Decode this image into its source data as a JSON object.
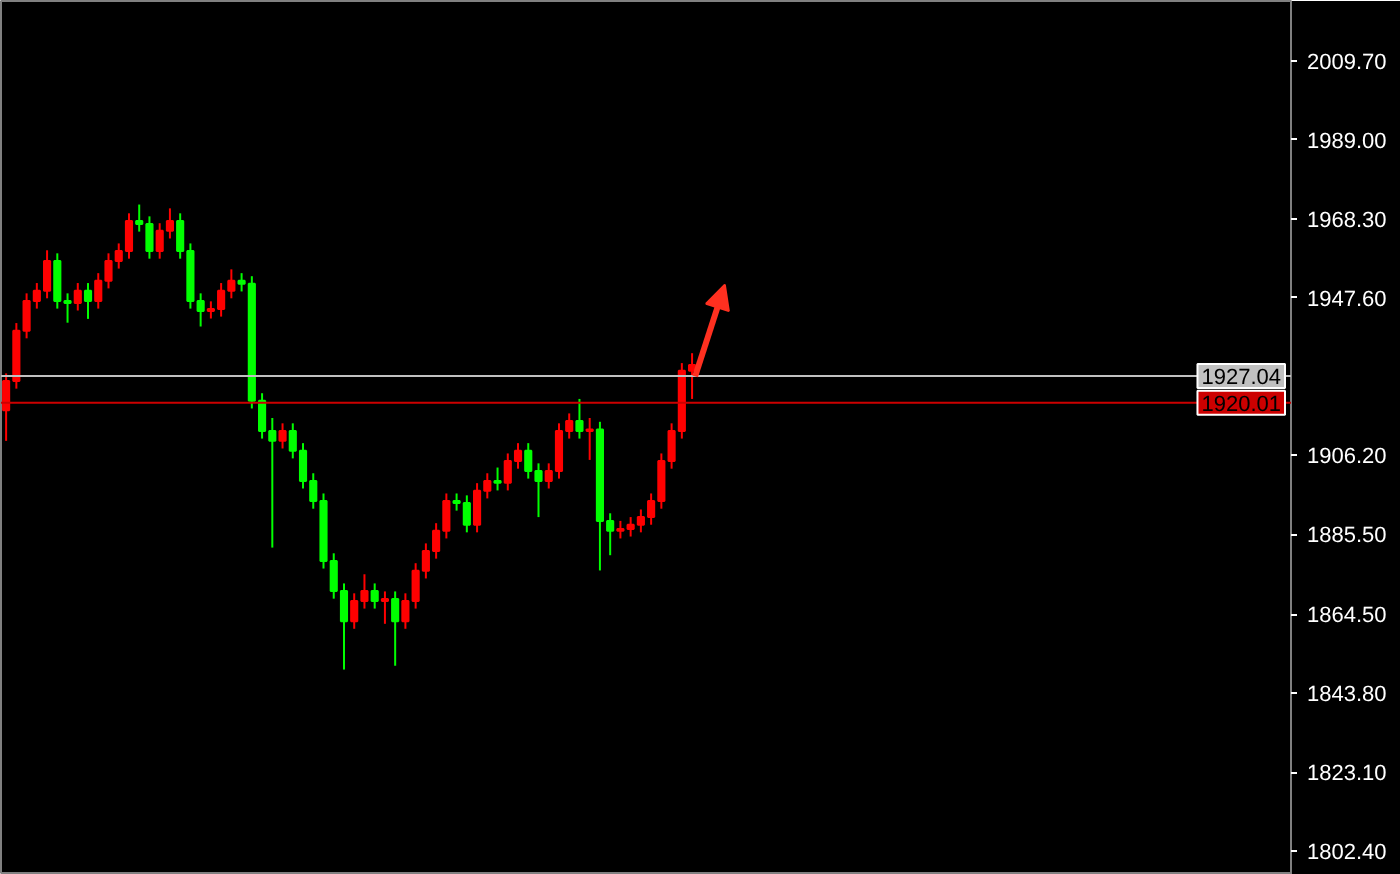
{
  "chart_data": {
    "type": "candlestick",
    "categories": [
      null,
      null,
      null,
      null,
      null,
      null,
      null,
      null,
      null,
      null,
      null,
      null,
      null,
      null,
      null,
      null,
      null,
      null,
      null,
      null,
      null,
      null,
      null,
      null,
      null,
      null,
      null,
      null,
      null,
      null,
      null,
      null,
      null,
      null,
      null,
      null,
      null,
      null,
      null,
      null,
      null,
      null,
      null,
      null,
      null,
      null,
      null,
      null,
      null,
      null,
      null,
      null,
      null,
      null,
      null,
      null,
      null,
      null,
      null,
      null,
      null,
      null,
      null,
      null,
      null,
      null,
      null,
      null,
      null,
      null,
      null,
      null,
      null,
      null,
      null,
      null,
      null,
      null,
      null,
      null,
      null,
      null,
      null,
      null,
      null,
      null,
      null,
      null,
      null,
      null,
      null,
      null,
      null,
      null,
      null,
      null,
      null,
      null,
      null,
      null,
      null,
      null,
      null,
      null,
      null,
      null,
      null,
      null,
      null,
      null,
      null,
      null,
      null,
      null,
      null,
      null,
      null,
      null,
      null,
      null,
      null,
      null,
      null,
      null,
      null,
      null
    ],
    "ohlc": [
      [
        1918.0,
        1927.7,
        1910.0,
        1925.7
      ],
      [
        1925.7,
        1940.9,
        1923.7,
        1938.9
      ],
      [
        1938.9,
        1948.7,
        1936.9,
        1946.7
      ],
      [
        1946.7,
        1951.4,
        1944.7,
        1949.4
      ],
      [
        1949.4,
        1960.0,
        1947.4,
        1957.2
      ],
      [
        1957.2,
        1959.2,
        1944.7,
        1946.7
      ],
      [
        1946.7,
        1948.7,
        1941.0,
        1946.2
      ],
      [
        1946.2,
        1951.4,
        1944.2,
        1949.4
      ],
      [
        1949.4,
        1951.4,
        1942.0,
        1946.7
      ],
      [
        1946.7,
        1954.0,
        1944.7,
        1952.0
      ],
      [
        1952.0,
        1959.2,
        1950.0,
        1957.2
      ],
      [
        1957.2,
        1961.8,
        1955.2,
        1959.8
      ],
      [
        1959.8,
        1969.7,
        1957.8,
        1967.7
      ],
      [
        1967.7,
        1972.0,
        1964.9,
        1966.9
      ],
      [
        1966.9,
        1968.9,
        1957.8,
        1959.8
      ],
      [
        1959.8,
        1967.1,
        1957.8,
        1965.1
      ],
      [
        1965.1,
        1971.0,
        1963.1,
        1967.7
      ],
      [
        1967.7,
        1969.7,
        1957.8,
        1959.8
      ],
      [
        1959.8,
        1961.8,
        1944.7,
        1946.7
      ],
      [
        1946.7,
        1948.7,
        1940.0,
        1944.1
      ],
      [
        1944.1,
        1946.6,
        1942.1,
        1944.6
      ],
      [
        1944.6,
        1951.4,
        1942.6,
        1949.4
      ],
      [
        1949.4,
        1955.0,
        1947.4,
        1952.0
      ],
      [
        1952.0,
        1954.0,
        1949.2,
        1951.2
      ],
      [
        1951.2,
        1953.2,
        1918.5,
        1920.5
      ],
      [
        1920.5,
        1922.5,
        1910.6,
        1912.6
      ],
      [
        1912.6,
        1916.0,
        1882.0,
        1910.0
      ],
      [
        1910.0,
        1914.6,
        1908.0,
        1912.6
      ],
      [
        1912.6,
        1914.6,
        1905.4,
        1907.4
      ],
      [
        1907.4,
        1909.4,
        1897.5,
        1899.5
      ],
      [
        1899.5,
        1901.5,
        1892.2,
        1894.2
      ],
      [
        1894.2,
        1896.2,
        1876.5,
        1878.5
      ],
      [
        1878.5,
        1880.5,
        1868.6,
        1870.6
      ],
      [
        1870.6,
        1872.6,
        1850.0,
        1862.7
      ],
      [
        1862.7,
        1870.0,
        1860.7,
        1868.0
      ],
      [
        1868.0,
        1875.0,
        1866.0,
        1870.6
      ],
      [
        1870.6,
        1872.6,
        1866.0,
        1868.0
      ],
      [
        1868.0,
        1870.5,
        1862.0,
        1868.5
      ],
      [
        1868.5,
        1870.5,
        1851.0,
        1862.7
      ],
      [
        1862.7,
        1870.0,
        1860.7,
        1868.0
      ],
      [
        1868.0,
        1877.9,
        1866.0,
        1875.9
      ],
      [
        1875.9,
        1883.1,
        1873.9,
        1881.1
      ],
      [
        1881.1,
        1888.4,
        1879.1,
        1886.4
      ],
      [
        1886.4,
        1896.2,
        1884.4,
        1894.2
      ],
      [
        1894.2,
        1896.2,
        1891.7,
        1893.7
      ],
      [
        1893.7,
        1895.7,
        1886.0,
        1888.0
      ],
      [
        1888.0,
        1898.9,
        1886.0,
        1896.9
      ],
      [
        1896.9,
        1901.5,
        1894.9,
        1899.5
      ],
      [
        1899.5,
        1903.0,
        1897.0,
        1899.0
      ],
      [
        1899.0,
        1906.7,
        1897.0,
        1904.7
      ],
      [
        1904.7,
        1909.4,
        1902.7,
        1907.4
      ],
      [
        1907.4,
        1909.4,
        1900.1,
        1902.1
      ],
      [
        1902.1,
        1904.1,
        1890.0,
        1899.5
      ],
      [
        1899.5,
        1904.1,
        1897.5,
        1902.1
      ],
      [
        1902.1,
        1914.6,
        1900.1,
        1912.6
      ],
      [
        1912.6,
        1917.2,
        1910.6,
        1915.2
      ],
      [
        1915.2,
        1921.0,
        1910.6,
        1912.6
      ],
      [
        1912.6,
        1916.0,
        1905.0,
        1913.0
      ],
      [
        1913.0,
        1915.0,
        1876.0,
        1889.0
      ],
      [
        1889.0,
        1891.0,
        1880.0,
        1886.4
      ],
      [
        1886.4,
        1889.0,
        1884.4,
        1886.9
      ],
      [
        1886.9,
        1890.0,
        1884.9,
        1888.0
      ],
      [
        1888.0,
        1892.0,
        1886.0,
        1890.0
      ],
      [
        1890.0,
        1896.2,
        1888.0,
        1894.2
      ],
      [
        1894.2,
        1906.7,
        1892.2,
        1904.7
      ],
      [
        1904.7,
        1914.6,
        1902.7,
        1912.6
      ],
      [
        1912.6,
        1930.4,
        1910.6,
        1928.4
      ],
      [
        1928.4,
        1933.0,
        1921.0,
        1929.9
      ],
      null,
      null,
      null,
      null,
      null,
      null,
      null,
      null,
      null,
      null,
      null,
      null,
      null,
      null,
      null,
      null,
      null,
      null,
      null,
      null,
      null,
      null,
      null,
      null,
      null,
      null,
      null,
      null,
      null,
      null,
      null,
      null,
      null,
      null,
      null,
      null,
      null,
      null,
      null,
      null,
      null,
      null,
      null,
      null,
      null,
      null,
      null,
      null,
      null,
      null,
      null,
      null,
      null,
      null,
      null,
      null,
      null,
      null
    ],
    "colors": [
      "#ff0000",
      "#ff0000",
      "#ff0000",
      "#ff0000",
      "#ff0000",
      "#00ff00",
      "#00ff00",
      "#ff0000",
      "#00ff00",
      "#ff0000",
      "#ff0000",
      "#ff0000",
      "#ff0000",
      "#00ff00",
      "#00ff00",
      "#ff0000",
      "#ff0000",
      "#00ff00",
      "#00ff00",
      "#00ff00",
      "#ff0000",
      "#ff0000",
      "#ff0000",
      "#00ff00",
      "#00ff00",
      "#00ff00",
      "#00ff00",
      "#ff0000",
      "#00ff00",
      "#00ff00",
      "#00ff00",
      "#00ff00",
      "#00ff00",
      "#00ff00",
      "#ff0000",
      "#ff0000",
      "#00ff00",
      "#ff0000",
      "#00ff00",
      "#ff0000",
      "#ff0000",
      "#ff0000",
      "#ff0000",
      "#ff0000",
      "#00ff00",
      "#00ff00",
      "#ff0000",
      "#ff0000",
      "#00ff00",
      "#ff0000",
      "#ff0000",
      "#00ff00",
      "#00ff00",
      "#ff0000",
      "#ff0000",
      "#ff0000",
      "#00ff00",
      "#ff0000",
      "#00ff00",
      "#00ff00",
      "#ff0000",
      "#ff0000",
      "#ff0000",
      "#ff0000",
      "#ff0000",
      "#ff0000",
      "#ff0000",
      "#ff0000",
      null,
      null,
      null,
      null,
      null,
      null,
      null,
      null,
      null,
      null,
      null,
      null,
      null,
      null,
      null,
      null,
      null,
      null,
      null,
      null,
      null,
      null,
      null,
      null,
      null,
      null,
      null,
      null,
      null,
      null,
      null,
      null,
      null,
      null,
      null,
      null,
      null,
      null,
      null,
      null,
      null,
      null,
      null,
      null,
      null,
      null,
      null,
      null,
      null,
      null,
      null,
      null,
      null,
      null,
      null,
      null,
      null,
      null
    ],
    "ylim": [
      1796.1,
      2025.4
    ],
    "yticks": [
      {
        "value": 2009.7,
        "label": "2009.70"
      },
      {
        "value": 1989.0,
        "label": "1989.00"
      },
      {
        "value": 1968.3,
        "label": "1968.30"
      },
      {
        "value": 1947.6,
        "label": "1947.60"
      },
      {
        "value": 1906.2,
        "label": "1906.20"
      },
      {
        "value": 1885.5,
        "label": "1885.50"
      },
      {
        "value": 1864.5,
        "label": "1864.50"
      },
      {
        "value": 1843.8,
        "label": "1843.80"
      },
      {
        "value": 1823.1,
        "label": "1823.10"
      },
      {
        "value": 1802.4,
        "label": "1802.40"
      }
    ],
    "ref_lines": [
      {
        "axis": "y",
        "value": 1927.04,
        "label": "1927.04",
        "color": "#c0c0c0"
      },
      {
        "axis": "y",
        "value": 1920.01,
        "label": "1920.01",
        "color": "#cc0000"
      }
    ],
    "grid": false
  }
}
